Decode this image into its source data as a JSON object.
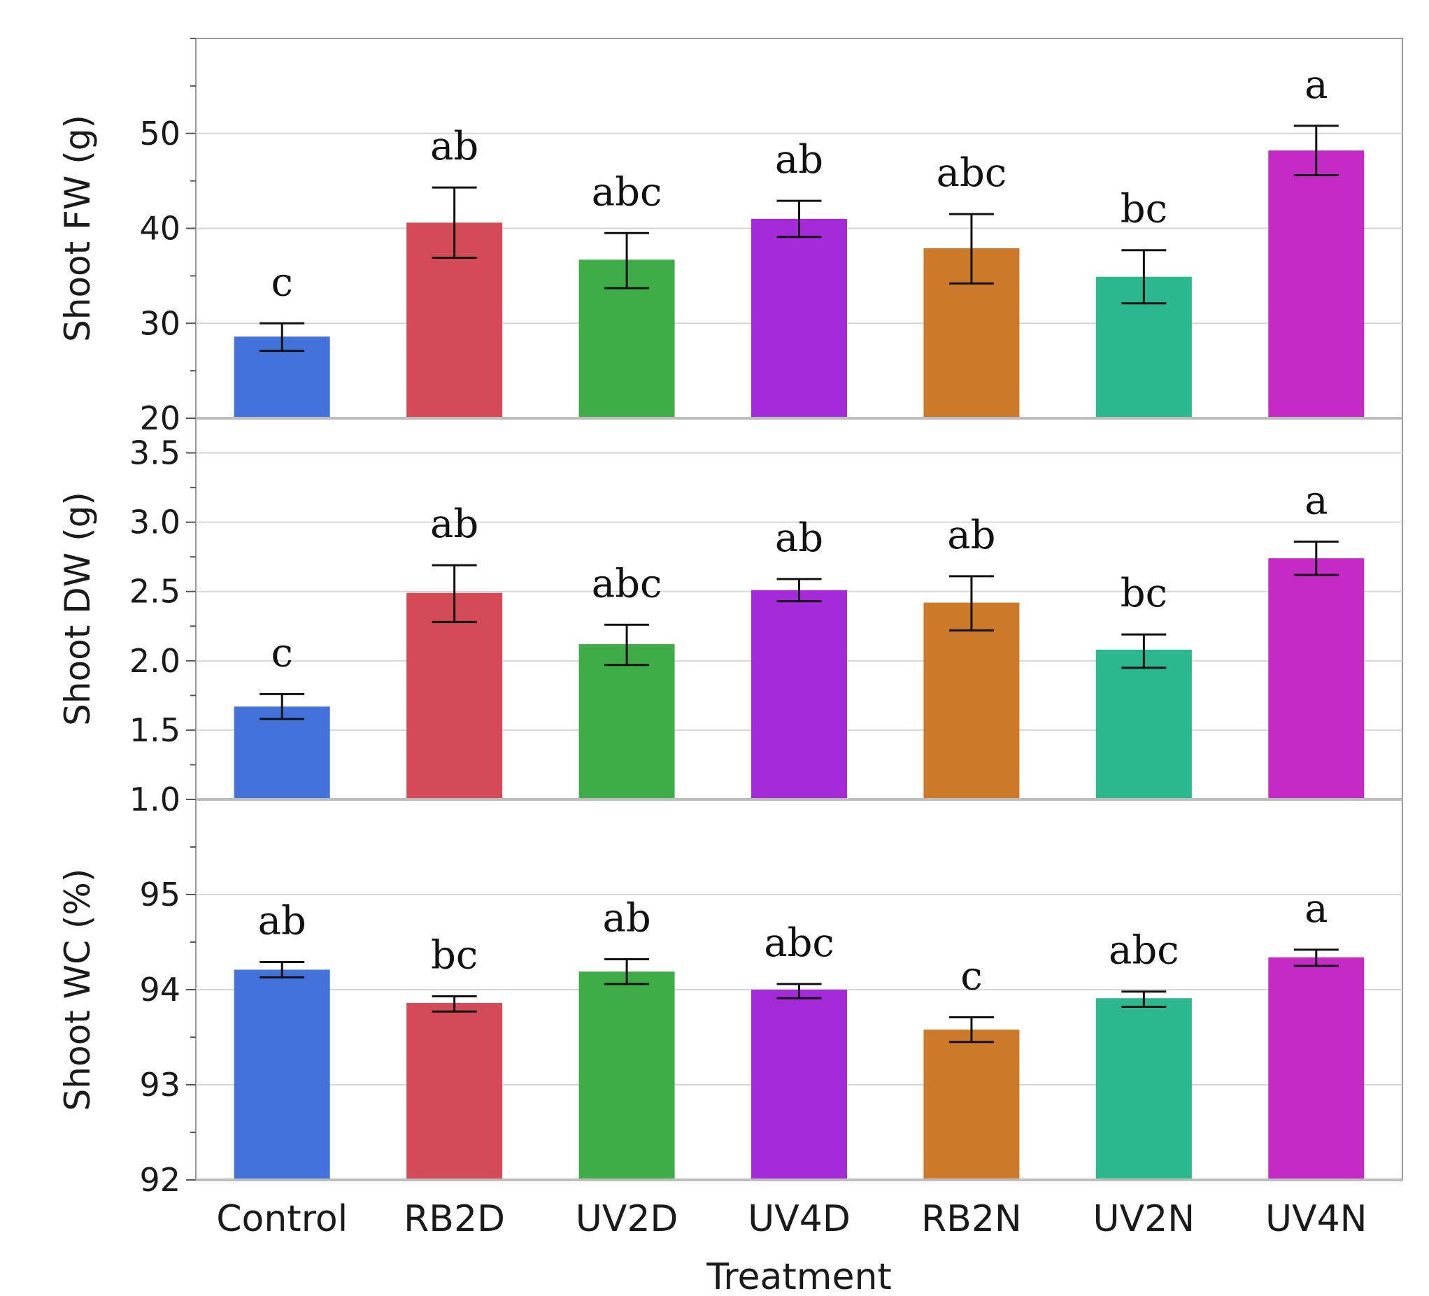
{
  "chart_data": {
    "type": "bar",
    "categories": [
      "Control",
      "RB2D",
      "UV2D",
      "UV4D",
      "RB2N",
      "UV2N",
      "UV4N"
    ],
    "xlabel": "Treatment",
    "colors": [
      "#4472db",
      "#d44a57",
      "#3fad47",
      "#a52ad9",
      "#cc7a2a",
      "#2bb88e",
      "#c62ac6"
    ],
    "grid": true,
    "panels": [
      {
        "ylabel": "Shoot FW (g)",
        "ylim": [
          20,
          60
        ],
        "yticks": [
          20,
          30,
          40,
          50
        ],
        "yticklabels": [
          "20",
          "30",
          "40",
          "50"
        ],
        "values": [
          28.6,
          40.6,
          36.7,
          41.0,
          37.9,
          34.9,
          48.2
        ],
        "err_low": [
          27.1,
          36.9,
          33.7,
          39.1,
          34.2,
          32.1,
          45.6
        ],
        "err_high": [
          30.0,
          44.3,
          39.5,
          42.9,
          41.5,
          37.7,
          50.8
        ],
        "letters": [
          "c",
          "ab",
          "abc",
          "ab",
          "abc",
          "bc",
          "a"
        ]
      },
      {
        "ylabel": "Shoot DW (g)",
        "ylim": [
          1.0,
          3.75
        ],
        "yticks": [
          1.0,
          1.5,
          2.0,
          2.5,
          3.0,
          3.5
        ],
        "yticklabels": [
          "1.0",
          "1.5",
          "2.0",
          "2.5",
          "3.0",
          "3.5"
        ],
        "values": [
          1.67,
          2.49,
          2.12,
          2.51,
          2.42,
          2.08,
          2.74
        ],
        "err_low": [
          1.58,
          2.28,
          1.97,
          2.43,
          2.22,
          1.95,
          2.62
        ],
        "err_high": [
          1.76,
          2.69,
          2.26,
          2.59,
          2.61,
          2.19,
          2.86
        ],
        "letters": [
          "c",
          "ab",
          "abc",
          "ab",
          "ab",
          "bc",
          "a"
        ]
      },
      {
        "ylabel": "Shoot WC (%)",
        "ylim": [
          92,
          96
        ],
        "yticks": [
          92,
          93,
          94,
          95
        ],
        "yticklabels": [
          "92",
          "93",
          "94",
          "95"
        ],
        "values": [
          94.21,
          93.86,
          94.19,
          94.0,
          93.58,
          93.91,
          94.34
        ],
        "err_low": [
          94.13,
          93.77,
          94.06,
          93.91,
          93.45,
          93.82,
          94.25
        ],
        "err_high": [
          94.29,
          93.93,
          94.32,
          94.06,
          93.71,
          93.98,
          94.42
        ],
        "letters": [
          "ab",
          "bc",
          "ab",
          "abc",
          "c",
          "abc",
          "a"
        ]
      }
    ]
  }
}
